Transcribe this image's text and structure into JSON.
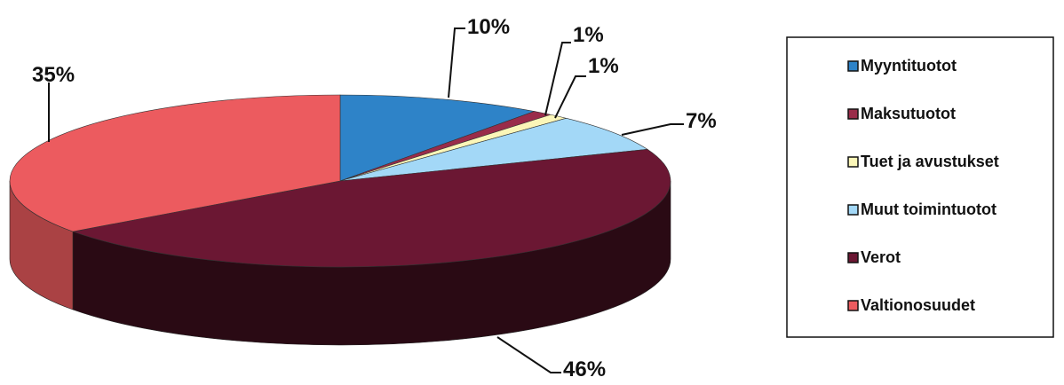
{
  "chart_data": {
    "type": "pie",
    "title": "",
    "slices": [
      {
        "name": "Myyntituotot",
        "value": 10,
        "label": "10%",
        "color": "#2e83c8"
      },
      {
        "name": "Maksutuotot",
        "value": 1,
        "label": "1%",
        "color": "#9a2c4a"
      },
      {
        "name": "Tuet ja avustukset",
        "value": 1,
        "label": "1%",
        "color": "#fbf6b8"
      },
      {
        "name": "Muut toimintuotot",
        "value": 7,
        "label": "7%",
        "color": "#a3d8f7"
      },
      {
        "name": "Verot",
        "value": 46,
        "label": "46%",
        "color": "#6b1733"
      },
      {
        "name": "Valtionosuudet",
        "value": 35,
        "label": "35%",
        "color": "#ec5b5f"
      }
    ],
    "legend": {
      "position": "right",
      "entries": [
        "Myyntituotot",
        "Maksutuotot",
        "Tuet ja avustukset",
        "Muut toimintuotot",
        "Verot",
        "Valtionosuudet"
      ]
    },
    "style": "3d-pie"
  }
}
